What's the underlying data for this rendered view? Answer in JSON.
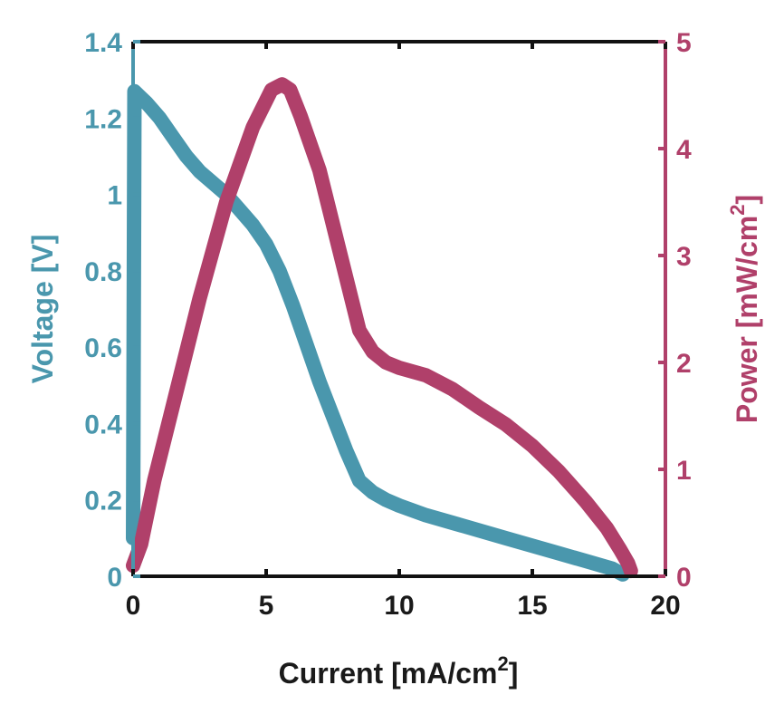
{
  "chart_data": {
    "type": "line",
    "title": "",
    "xlabel": "Current [mA/cm",
    "xlabel_sup": "2",
    "xlabel_suffix": "]",
    "xlim": [
      0,
      20
    ],
    "xticks": [
      "0",
      "5",
      "10",
      "15",
      "20"
    ],
    "y_left": {
      "label": "Voltage [V]",
      "lim": [
        0,
        1.4
      ],
      "ticks": [
        "0",
        "0.2",
        "0.4",
        "0.6",
        "0.8",
        "1",
        "1.2",
        "1.4"
      ],
      "color": "#4a97ad"
    },
    "y_right": {
      "label": "Power [mW/cm",
      "label_sup": "2",
      "label_suffix": "]",
      "lim": [
        0,
        5
      ],
      "ticks": [
        "0",
        "1",
        "2",
        "3",
        "4",
        "5"
      ],
      "color": "#b0406a"
    },
    "series": [
      {
        "name": "Voltage",
        "axis": "left",
        "x": [
          0,
          0.05,
          0.2,
          0.5,
          1,
          1.5,
          2,
          2.5,
          3,
          3.5,
          4,
          4.5,
          5,
          5.5,
          6,
          6.5,
          7,
          7.5,
          8,
          8.5,
          9,
          9.5,
          10,
          11,
          12,
          13,
          14,
          15,
          16,
          17,
          18,
          18.4
        ],
        "y": [
          0.1,
          1.27,
          1.26,
          1.24,
          1.2,
          1.15,
          1.1,
          1.06,
          1.03,
          1.0,
          0.96,
          0.92,
          0.87,
          0.8,
          0.71,
          0.61,
          0.51,
          0.42,
          0.33,
          0.25,
          0.22,
          0.2,
          0.185,
          0.16,
          0.14,
          0.12,
          0.1,
          0.08,
          0.06,
          0.04,
          0.02,
          0.005
        ]
      },
      {
        "name": "Power",
        "axis": "right",
        "x": [
          0,
          0.3,
          0.8,
          1.5,
          2.5,
          3.5,
          4.5,
          5.2,
          5.6,
          5.9,
          6.3,
          7,
          7.5,
          8,
          8.5,
          9,
          9.5,
          10,
          11,
          12,
          13,
          14,
          15,
          16,
          17,
          17.8,
          18.3,
          18.6,
          18.7
        ],
        "y": [
          0.1,
          0.3,
          0.9,
          1.6,
          2.6,
          3.5,
          4.2,
          4.55,
          4.6,
          4.55,
          4.3,
          3.8,
          3.3,
          2.8,
          2.3,
          2.1,
          2.0,
          1.95,
          1.88,
          1.75,
          1.58,
          1.42,
          1.22,
          0.98,
          0.7,
          0.45,
          0.25,
          0.12,
          0.05
        ]
      }
    ]
  }
}
